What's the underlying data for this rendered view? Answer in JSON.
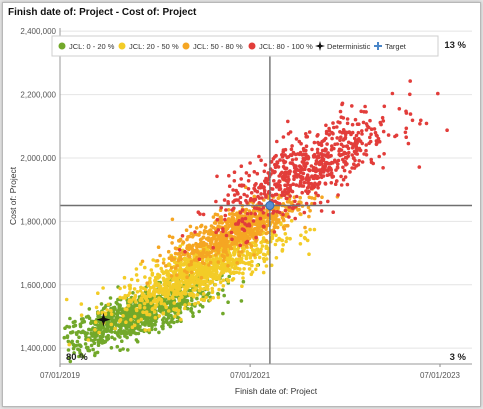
{
  "title": "Finish date of: Project - Cost of: Project",
  "chart_data": {
    "type": "scatter",
    "title": "Finish date of: Project - Cost of: Project",
    "xlabel": "Finish date of: Project",
    "ylabel": "Cost of: Project",
    "xlim": [
      "2019-07-01",
      "2023-11-01"
    ],
    "ylim": [
      1350000,
      2410000
    ],
    "x_ticks": [
      "07/01/2019",
      "07/01/2021",
      "07/01/2023"
    ],
    "y_ticks": [
      "2,400,000",
      "2,200,000",
      "2,000,000",
      "1,800,000",
      "1,600,000",
      "1,400,000"
    ],
    "y_tick_values": [
      2400000,
      2200000,
      2000000,
      1800000,
      1600000,
      1400000
    ],
    "grid": "horizontal",
    "legend_position": "top",
    "series": [
      {
        "name": "JCL: 0 - 20 %",
        "color": "#72a82a",
        "center": [
          "2020-04-15",
          1500000
        ],
        "spread": [
          150,
          55000
        ],
        "count": 900
      },
      {
        "name": "JCL: 20 - 50 %",
        "color": "#f3cc27",
        "center": [
          "2020-12-15",
          1640000
        ],
        "spread": [
          150,
          65000
        ],
        "count": 1000
      },
      {
        "name": "JCL: 50 - 80 %",
        "color": "#f5a623",
        "center": [
          "2021-05-01",
          1770000
        ],
        "spread": [
          120,
          55000
        ],
        "count": 700
      },
      {
        "name": "JCL: 80 - 100 %",
        "color": "#e23d3a",
        "center": [
          "2022-02-01",
          1960000
        ],
        "spread": [
          170,
          90000
        ],
        "count": 700
      }
    ],
    "markers": [
      {
        "name": "Deterministic",
        "symbol": "black-diamond",
        "x": "2019-12-15",
        "y": 1490000,
        "color": "#111111"
      },
      {
        "name": "Target",
        "symbol": "blue-cross",
        "x": "2021-09-15",
        "y": 1850000,
        "color": "#2f6db5"
      }
    ],
    "crosshair": {
      "x": "2021-09-15",
      "y": 1850000
    },
    "quadrants": {
      "top_left": "",
      "top_right": "13 %",
      "bottom_left": "80 %",
      "bottom_right": "3 %"
    }
  }
}
